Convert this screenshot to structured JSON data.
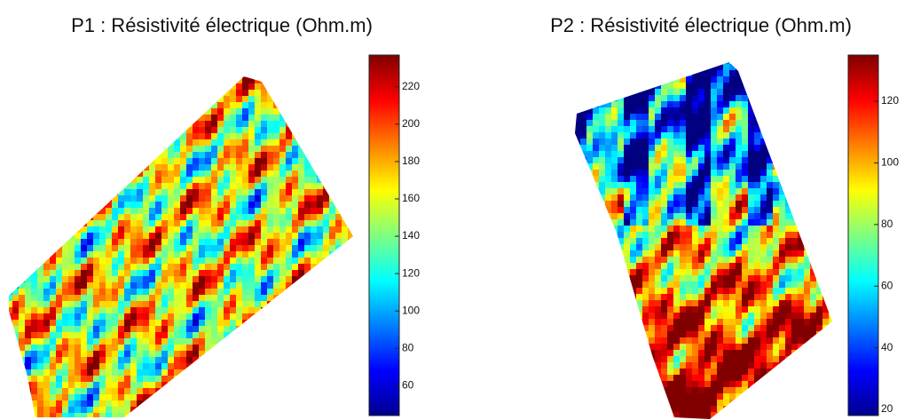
{
  "chart_data": [
    {
      "type": "heatmap",
      "title": "P1 : Résistivité électrique (Ohm.m)",
      "colormap": "jet",
      "ylim": [
        44,
        237
      ],
      "yticks": [
        60,
        80,
        100,
        120,
        140,
        160,
        180,
        200,
        220
      ]
    },
    {
      "type": "heatmap",
      "title": "P2 : Résistivité électrique (Ohm.m)",
      "colormap": "jet",
      "ylim": [
        18,
        135
      ],
      "yticks": [
        20,
        40,
        60,
        80,
        100,
        120
      ]
    }
  ]
}
